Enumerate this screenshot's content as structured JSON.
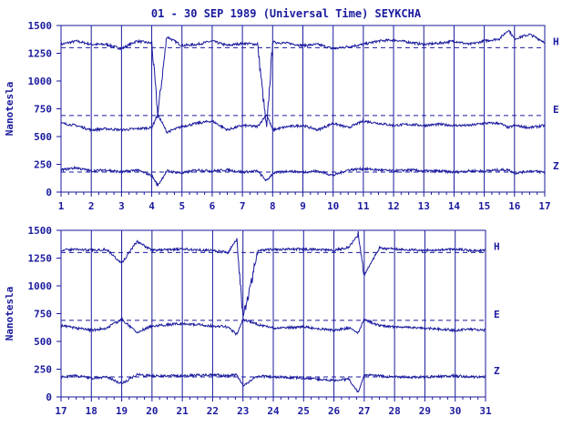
{
  "chart_data": [
    {
      "type": "line",
      "title": "01 - 30 SEP 1989 (Universal Time) SEYKCHA",
      "ylabel": "Nanotesla",
      "xlim": [
        1,
        17
      ],
      "ylim": [
        0,
        1500
      ],
      "x_ticks": [
        1,
        2,
        3,
        4,
        5,
        6,
        7,
        8,
        9,
        10,
        11,
        12,
        13,
        14,
        15,
        16,
        17
      ],
      "y_ticks": [
        0,
        250,
        500,
        750,
        1000,
        1250,
        1500
      ],
      "baselines": [
        {
          "name": "H",
          "value": 1300
        },
        {
          "name": "E",
          "value": 690
        },
        {
          "name": "Z",
          "value": 180
        }
      ],
      "series": [
        {
          "name": "H",
          "x": [
            1,
            1.5,
            2,
            2.5,
            3,
            3.5,
            4,
            4.2,
            4.5,
            5,
            5.5,
            6,
            6.5,
            7,
            7.5,
            7.8,
            8,
            8.5,
            9,
            9.5,
            10,
            10.5,
            11,
            11.5,
            12,
            12.5,
            13,
            13.5,
            14,
            14.5,
            15,
            15.5,
            15.8,
            16,
            16.5,
            17
          ],
          "y": [
            1330,
            1360,
            1330,
            1330,
            1290,
            1360,
            1340,
            700,
            1400,
            1320,
            1330,
            1360,
            1320,
            1340,
            1330,
            560,
            1350,
            1340,
            1320,
            1330,
            1290,
            1310,
            1330,
            1360,
            1370,
            1350,
            1330,
            1340,
            1360,
            1330,
            1360,
            1380,
            1460,
            1380,
            1420,
            1350
          ]
        },
        {
          "name": "E",
          "x": [
            1,
            1.5,
            2,
            2.5,
            3,
            3.5,
            4,
            4.2,
            4.5,
            5,
            5.5,
            6,
            6.5,
            7,
            7.5,
            7.8,
            8,
            8.5,
            9,
            9.5,
            10,
            10.5,
            11,
            11.5,
            12,
            12.5,
            13,
            13.5,
            14,
            14.5,
            15,
            15.5,
            15.8,
            16,
            16.5,
            17
          ],
          "y": [
            620,
            600,
            560,
            570,
            560,
            570,
            580,
            700,
            540,
            590,
            620,
            640,
            560,
            600,
            590,
            700,
            560,
            590,
            600,
            560,
            620,
            580,
            640,
            620,
            600,
            610,
            600,
            610,
            600,
            600,
            620,
            620,
            580,
            600,
            580,
            600
          ]
        },
        {
          "name": "Z",
          "x": [
            1,
            1.5,
            2,
            2.5,
            3,
            3.5,
            4,
            4.2,
            4.5,
            5,
            5.5,
            6,
            6.5,
            7,
            7.5,
            7.8,
            8,
            8.5,
            9,
            9.5,
            10,
            10.5,
            11,
            11.5,
            12,
            12.5,
            13,
            13.5,
            14,
            14.5,
            15,
            15.5,
            15.8,
            16,
            16.5,
            17
          ],
          "y": [
            200,
            220,
            190,
            200,
            180,
            200,
            150,
            60,
            190,
            170,
            200,
            190,
            200,
            180,
            190,
            100,
            170,
            190,
            180,
            190,
            150,
            200,
            210,
            200,
            190,
            200,
            190,
            190,
            180,
            190,
            190,
            200,
            200,
            170,
            190,
            180
          ]
        }
      ]
    },
    {
      "type": "line",
      "ylabel": "Nanotesla",
      "xlim": [
        17,
        31
      ],
      "ylim": [
        0,
        1500
      ],
      "x_ticks": [
        17,
        18,
        19,
        20,
        21,
        22,
        23,
        24,
        25,
        26,
        27,
        28,
        29,
        30,
        31
      ],
      "y_ticks": [
        0,
        250,
        500,
        750,
        1000,
        1250,
        1500
      ],
      "baselines": [
        {
          "name": "H",
          "value": 1300
        },
        {
          "name": "E",
          "value": 690
        },
        {
          "name": "Z",
          "value": 180
        }
      ],
      "series": [
        {
          "name": "H",
          "x": [
            17,
            17.5,
            18,
            18.5,
            19,
            19.5,
            20,
            21,
            22,
            22.5,
            22.8,
            23,
            23.5,
            24,
            25,
            26,
            26.5,
            26.8,
            27,
            27.5,
            28,
            29,
            30,
            30.5,
            31
          ],
          "y": [
            1320,
            1330,
            1320,
            1330,
            1200,
            1400,
            1320,
            1330,
            1320,
            1300,
            1420,
            700,
            1320,
            1330,
            1330,
            1320,
            1350,
            1460,
            1100,
            1340,
            1330,
            1320,
            1330,
            1320,
            1320
          ]
        },
        {
          "name": "E",
          "x": [
            17,
            17.5,
            18,
            18.5,
            19,
            19.5,
            20,
            21,
            22,
            22.5,
            22.8,
            23,
            23.5,
            24,
            25,
            26,
            26.5,
            26.8,
            27,
            27.5,
            28,
            29,
            30,
            30.5,
            31
          ],
          "y": [
            640,
            620,
            600,
            620,
            700,
            580,
            640,
            660,
            640,
            630,
            560,
            700,
            650,
            620,
            630,
            600,
            620,
            580,
            700,
            640,
            630,
            620,
            600,
            610,
            600
          ]
        },
        {
          "name": "Z",
          "x": [
            17,
            17.5,
            18,
            18.5,
            19,
            19.5,
            20,
            21,
            22,
            22.5,
            22.8,
            23,
            23.5,
            24,
            25,
            26,
            26.5,
            26.8,
            27,
            27.5,
            28,
            29,
            30,
            30.5,
            31
          ],
          "y": [
            180,
            190,
            170,
            180,
            120,
            200,
            190,
            190,
            200,
            190,
            200,
            100,
            190,
            180,
            170,
            150,
            160,
            40,
            200,
            190,
            180,
            180,
            190,
            180,
            180
          ]
        }
      ]
    }
  ],
  "colors": {
    "trace": "#1a1a9e",
    "frame": "#1a1a9e",
    "background": "#ffffff"
  }
}
